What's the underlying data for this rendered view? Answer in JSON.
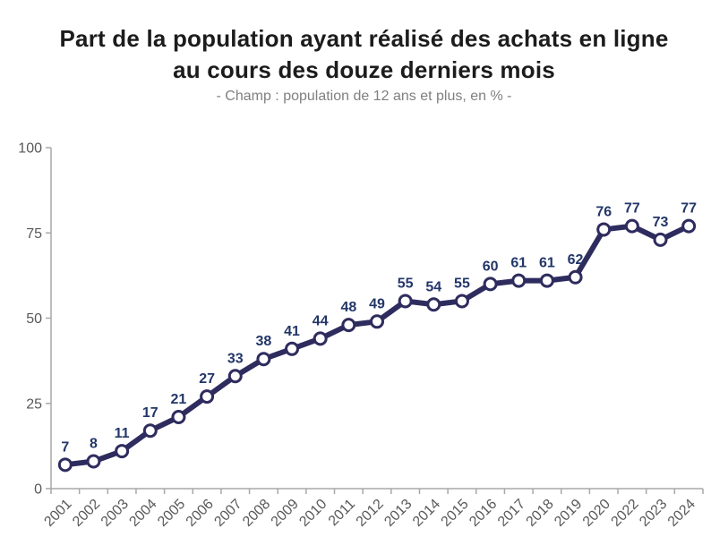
{
  "chart_data": {
    "type": "line",
    "title_line1": "Part de la population ayant réalisé des achats en ligne",
    "title_line2": "au cours des douze derniers mois",
    "subtitle": "- Champ : population de 12 ans et plus, en % -",
    "x": [
      "2001",
      "2002",
      "2003",
      "2004",
      "2005",
      "2006",
      "2007",
      "2008",
      "2009",
      "2010",
      "2011",
      "2012",
      "2013",
      "2014",
      "2015",
      "2016",
      "2017",
      "2018",
      "2019",
      "2020",
      "2022",
      "2023",
      "2024"
    ],
    "values": [
      7,
      8,
      11,
      17,
      21,
      27,
      33,
      38,
      41,
      44,
      48,
      49,
      55,
      54,
      55,
      60,
      61,
      61,
      62,
      76,
      77,
      73,
      77
    ],
    "xlabel": "",
    "ylabel": "",
    "ylim": [
      0,
      100
    ],
    "yticks": [
      0,
      25,
      50,
      75,
      100
    ],
    "grid": false,
    "legend": "none",
    "data_labels": true,
    "marker": "open-circle",
    "colors": {
      "line": "#2E2C5E",
      "marker_fill": "#FFFFFF",
      "value_label": "#223668",
      "axis": "#A8A8A8",
      "axis_label": "#595959",
      "title": "#1c1c1c",
      "subtitle": "#808080"
    }
  }
}
